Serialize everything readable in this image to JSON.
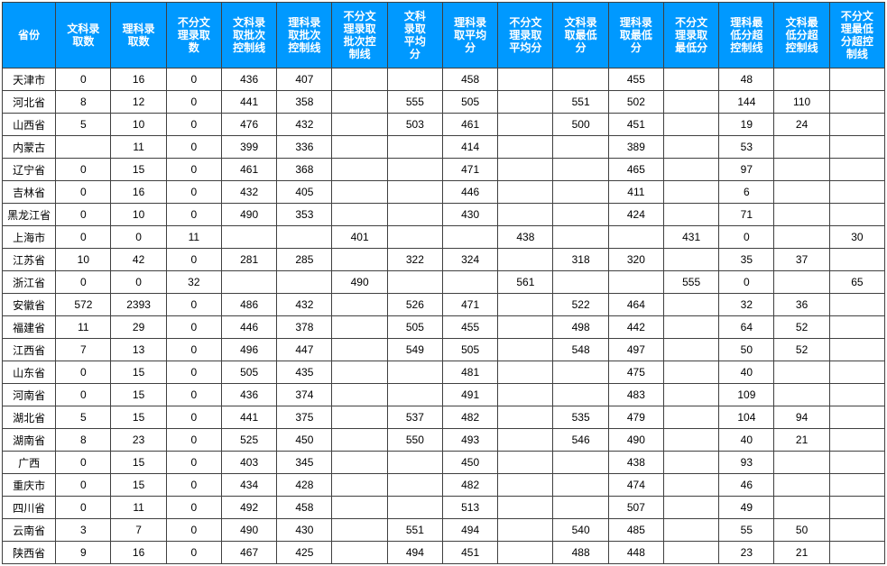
{
  "header_bg": "#0099ff",
  "header_fg": "#ffffff",
  "border_color": "#404040",
  "columns": [
    "省份",
    "文科录取数",
    "理科录取数",
    "不分文理录取数",
    "文科录取批次控制线",
    "理科录取批次控制线",
    "不分文理录取批次控制线",
    "文科录取平均分",
    "理科录取平均分",
    "不分文理录取平均分",
    "文科录取最低分",
    "理科录取最低分",
    "不分文理录取最低分",
    "理科最低分超控制线",
    "文科最低分超控制线",
    "不分文理最低分超控制线"
  ],
  "column_breaks": [
    "省份",
    "文科录\n取数",
    "理科录\n取数",
    "不分文\n理录取\n数",
    "文科录\n取批次\n控制线",
    "理科录\n取批次\n控制线",
    "不分文\n理录取\n批次控\n制线",
    "文科\n录取\n平均\n分",
    "理科录\n取平均\n分",
    "不分文\n理录取\n平均分",
    "文科录\n取最低\n分",
    "理科录\n取最低\n分",
    "不分文\n理录取\n最低分",
    "理科最\n低分超\n控制线",
    "文科最\n低分超\n控制线",
    "不分文\n理最低\n分超控\n制线"
  ],
  "rows": [
    [
      "天津市",
      "0",
      "16",
      "0",
      "436",
      "407",
      "",
      "",
      "458",
      "",
      "",
      "455",
      "",
      "48",
      "",
      ""
    ],
    [
      "河北省",
      "8",
      "12",
      "0",
      "441",
      "358",
      "",
      "555",
      "505",
      "",
      "551",
      "502",
      "",
      "144",
      "110",
      ""
    ],
    [
      "山西省",
      "5",
      "10",
      "0",
      "476",
      "432",
      "",
      "503",
      "461",
      "",
      "500",
      "451",
      "",
      "19",
      "24",
      ""
    ],
    [
      "内蒙古",
      "",
      "11",
      "0",
      "399",
      "336",
      "",
      "",
      "414",
      "",
      "",
      "389",
      "",
      "53",
      "",
      ""
    ],
    [
      "辽宁省",
      "0",
      "15",
      "0",
      "461",
      "368",
      "",
      "",
      "471",
      "",
      "",
      "465",
      "",
      "97",
      "",
      ""
    ],
    [
      "吉林省",
      "0",
      "16",
      "0",
      "432",
      "405",
      "",
      "",
      "446",
      "",
      "",
      "411",
      "",
      "6",
      "",
      ""
    ],
    [
      "黑龙江省",
      "0",
      "10",
      "0",
      "490",
      "353",
      "",
      "",
      "430",
      "",
      "",
      "424",
      "",
      "71",
      "",
      ""
    ],
    [
      "上海市",
      "0",
      "0",
      "11",
      "",
      "",
      "401",
      "",
      "",
      "438",
      "",
      "",
      "431",
      "0",
      "",
      "30"
    ],
    [
      "江苏省",
      "10",
      "42",
      "0",
      "281",
      "285",
      "",
      "322",
      "324",
      "",
      "318",
      "320",
      "",
      "35",
      "37",
      ""
    ],
    [
      "浙江省",
      "0",
      "0",
      "32",
      "",
      "",
      "490",
      "",
      "",
      "561",
      "",
      "",
      "555",
      "0",
      "",
      "65"
    ],
    [
      "安徽省",
      "572",
      "2393",
      "0",
      "486",
      "432",
      "",
      "526",
      "471",
      "",
      "522",
      "464",
      "",
      "32",
      "36",
      ""
    ],
    [
      "福建省",
      "11",
      "29",
      "0",
      "446",
      "378",
      "",
      "505",
      "455",
      "",
      "498",
      "442",
      "",
      "64",
      "52",
      ""
    ],
    [
      "江西省",
      "7",
      "13",
      "0",
      "496",
      "447",
      "",
      "549",
      "505",
      "",
      "548",
      "497",
      "",
      "50",
      "52",
      ""
    ],
    [
      "山东省",
      "0",
      "15",
      "0",
      "505",
      "435",
      "",
      "",
      "481",
      "",
      "",
      "475",
      "",
      "40",
      "",
      ""
    ],
    [
      "河南省",
      "0",
      "15",
      "0",
      "436",
      "374",
      "",
      "",
      "491",
      "",
      "",
      "483",
      "",
      "109",
      "",
      ""
    ],
    [
      "湖北省",
      "5",
      "15",
      "0",
      "441",
      "375",
      "",
      "537",
      "482",
      "",
      "535",
      "479",
      "",
      "104",
      "94",
      ""
    ],
    [
      "湖南省",
      "8",
      "23",
      "0",
      "525",
      "450",
      "",
      "550",
      "493",
      "",
      "546",
      "490",
      "",
      "40",
      "21",
      ""
    ],
    [
      "广西",
      "0",
      "15",
      "0",
      "403",
      "345",
      "",
      "",
      "450",
      "",
      "",
      "438",
      "",
      "93",
      "",
      ""
    ],
    [
      "重庆市",
      "0",
      "15",
      "0",
      "434",
      "428",
      "",
      "",
      "482",
      "",
      "",
      "474",
      "",
      "46",
      "",
      ""
    ],
    [
      "四川省",
      "0",
      "11",
      "0",
      "492",
      "458",
      "",
      "",
      "513",
      "",
      "",
      "507",
      "",
      "49",
      "",
      ""
    ],
    [
      "云南省",
      "3",
      "7",
      "0",
      "490",
      "430",
      "",
      "551",
      "494",
      "",
      "540",
      "485",
      "",
      "55",
      "50",
      ""
    ],
    [
      "陕西省",
      "9",
      "16",
      "0",
      "467",
      "425",
      "",
      "494",
      "451",
      "",
      "488",
      "448",
      "",
      "23",
      "21",
      ""
    ]
  ]
}
